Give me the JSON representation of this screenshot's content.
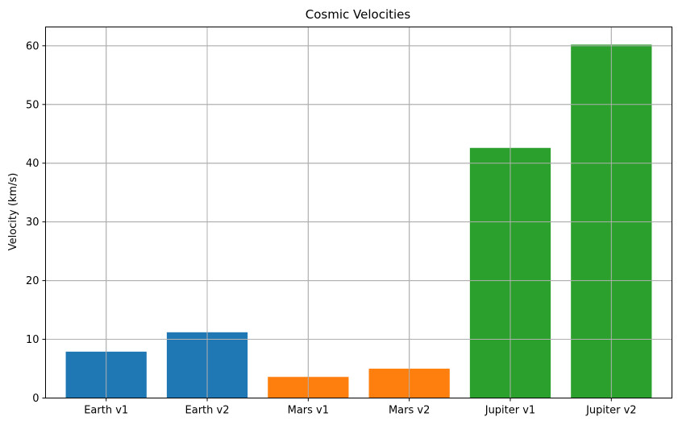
{
  "chart_data": {
    "type": "bar",
    "title": "Cosmic Velocities",
    "xlabel": "",
    "ylabel": "Velocity (km/s)",
    "categories": [
      "Earth v1",
      "Earth v2",
      "Mars v1",
      "Mars v2",
      "Jupiter v1",
      "Jupiter v2"
    ],
    "values": [
      7.9,
      11.2,
      3.6,
      5.0,
      42.6,
      60.2
    ],
    "bar_colors": [
      "#1f77b4",
      "#1f77b4",
      "#ff7f0e",
      "#ff7f0e",
      "#2ca02c",
      "#2ca02c"
    ],
    "ylim": [
      0,
      63.2
    ],
    "yticks": [
      0,
      10,
      20,
      30,
      40,
      50,
      60
    ],
    "grid": true,
    "legend": "none"
  }
}
